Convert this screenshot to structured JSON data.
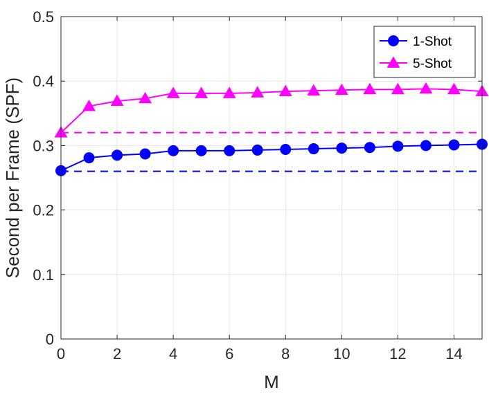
{
  "chart_data": {
    "type": "line",
    "title": "",
    "xlabel": "M",
    "ylabel": "Second per Frame (SPF)",
    "xlim": [
      0,
      15
    ],
    "ylim": [
      0,
      0.5
    ],
    "xticks": [
      0,
      2,
      4,
      6,
      8,
      10,
      12,
      14
    ],
    "xtick_labels": [
      "0",
      "2",
      "4",
      "6",
      "8",
      "10",
      "12",
      "14"
    ],
    "yticks": [
      0,
      0.1,
      0.2,
      0.3,
      0.4,
      0.5
    ],
    "ytick_labels": [
      "0",
      "0.1",
      "0.2",
      "0.3",
      "0.4",
      "0.5"
    ],
    "grid": true,
    "legend_position": "top-right",
    "x": [
      0,
      1,
      2,
      3,
      4,
      5,
      6,
      7,
      8,
      9,
      10,
      11,
      12,
      13,
      14,
      15
    ],
    "series": [
      {
        "name": "1-Shot",
        "color": "#0000ff",
        "marker": "circle",
        "values": [
          0.261,
          0.281,
          0.285,
          0.287,
          0.292,
          0.292,
          0.292,
          0.293,
          0.294,
          0.295,
          0.296,
          0.297,
          0.299,
          0.3,
          0.301,
          0.302
        ]
      },
      {
        "name": "5-Shot",
        "color": "#ff00ff",
        "marker": "triangle",
        "values": [
          0.32,
          0.361,
          0.369,
          0.373,
          0.381,
          0.381,
          0.381,
          0.382,
          0.384,
          0.385,
          0.386,
          0.387,
          0.387,
          0.388,
          0.387,
          0.384
        ]
      }
    ],
    "reference_lines": [
      {
        "y": 0.26,
        "color": "#0000ff",
        "style": "dashed"
      },
      {
        "y": 0.32,
        "color": "#ff00ff",
        "style": "dashed"
      }
    ]
  }
}
